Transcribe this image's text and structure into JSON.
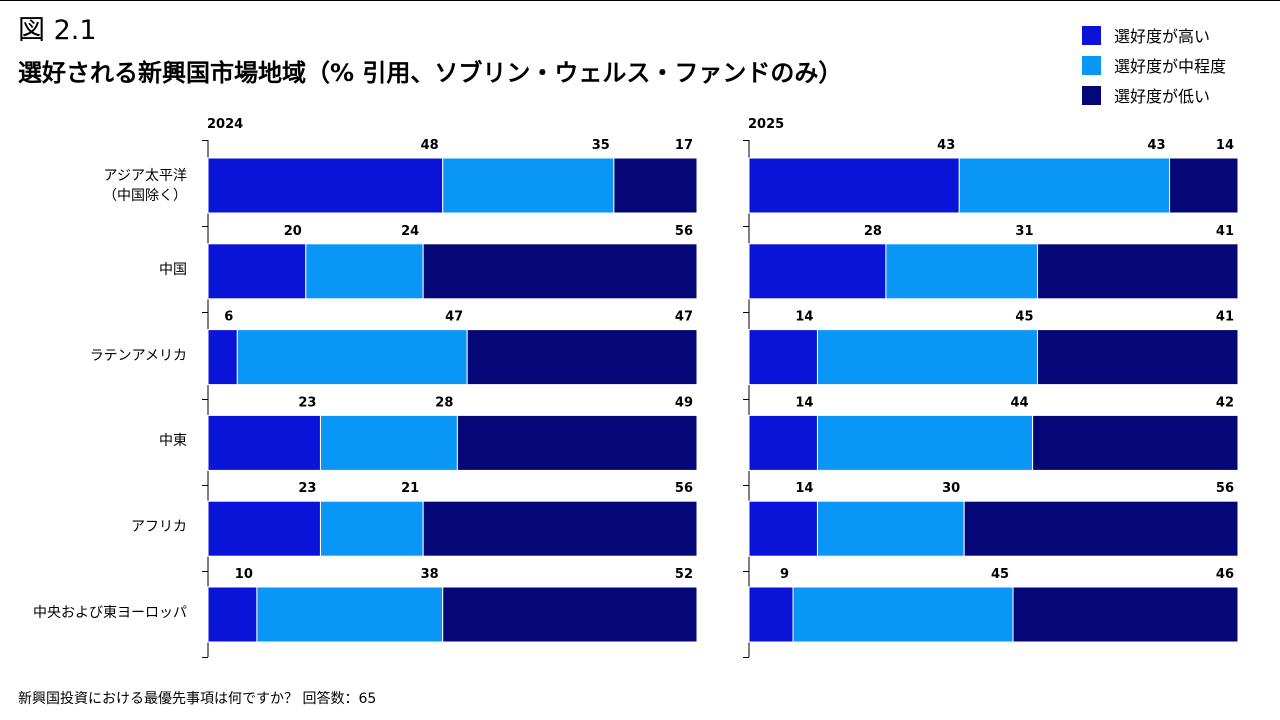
{
  "figure_label": "図 2.1",
  "title": "選好される新興国市場地域（% 引用、ソブリン・ウェルス・ファンドのみ）",
  "legend": [
    {
      "label": "選好度が高い",
      "color": "#0a14d9"
    },
    {
      "label": "選好度が中程度",
      "color": "#0996f7"
    },
    {
      "label": "選好度が低い",
      "color": "#050677"
    }
  ],
  "footnote": "新興国投資における最優先事項は何ですか？ 回答数：65",
  "chart_data": {
    "type": "bar",
    "orientation": "horizontal",
    "stacked": true,
    "unit": "%",
    "categories": [
      "アジア太平洋\n（中国除く）",
      "中国",
      "ラテンアメリカ",
      "中東",
      "アフリカ",
      "中央および東ヨーロッパ"
    ],
    "panels": [
      {
        "title": "2024",
        "series": [
          {
            "name": "選好度が高い",
            "values": [
              48,
              20,
              6,
              23,
              23,
              10
            ]
          },
          {
            "name": "選好度が中程度",
            "values": [
              35,
              24,
              47,
              28,
              21,
              38
            ]
          },
          {
            "name": "選好度が低い",
            "values": [
              17,
              56,
              47,
              49,
              56,
              52
            ]
          }
        ]
      },
      {
        "title": "2025",
        "series": [
          {
            "name": "選好度が高い",
            "values": [
              43,
              28,
              14,
              14,
              14,
              9
            ]
          },
          {
            "name": "選好度が中程度",
            "values": [
              43,
              31,
              45,
              44,
              30,
              45
            ]
          },
          {
            "name": "選好度が低い",
            "values": [
              14,
              41,
              41,
              42,
              56,
              46
            ]
          }
        ]
      }
    ],
    "xlim": [
      0,
      100
    ],
    "grid": false,
    "legend_position": "top-right"
  }
}
